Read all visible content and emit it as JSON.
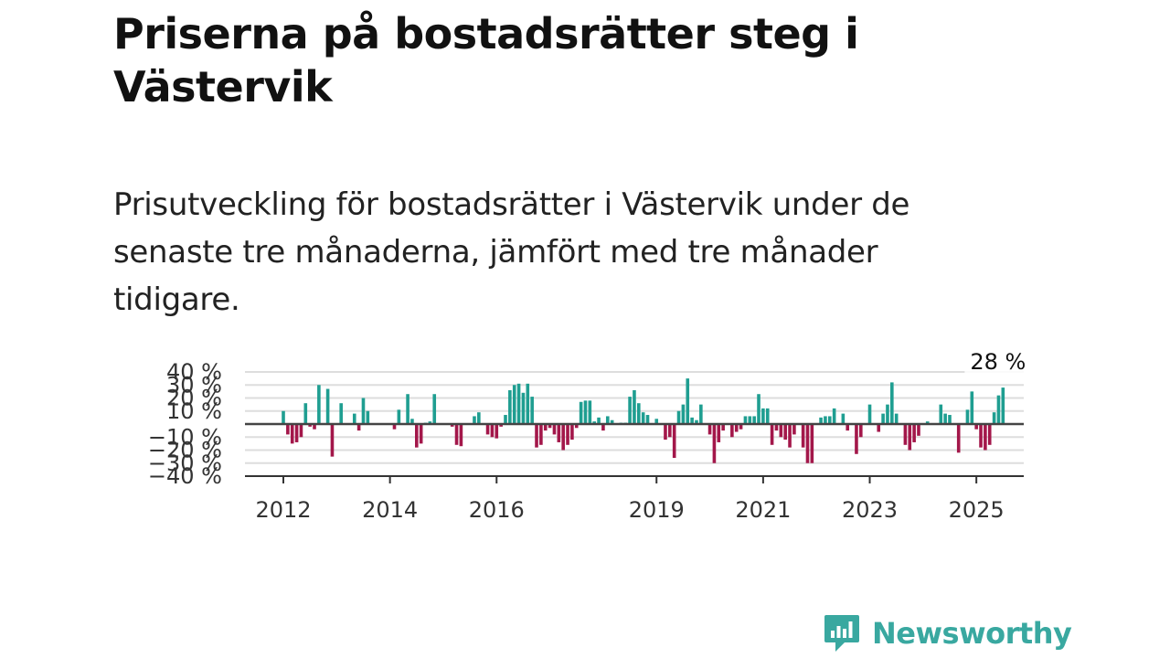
{
  "title": "Priserna på bostadsrätter steg i Västervik",
  "subtitle": "Prisutveckling för bostadsrätter i Västervik under de senaste tre månaderna, jämfört med tre månader tidigare.",
  "brand": {
    "name": "Newsworthy",
    "color": "#39a8a0"
  },
  "colors": {
    "positive": "#1f9e91",
    "negative": "#a3174a",
    "zero_line": "#444444",
    "grid": "#dddddd"
  },
  "chart_data": {
    "type": "bar",
    "ylim": [
      -40,
      40
    ],
    "y_ticks": [
      40,
      30,
      20,
      10,
      0,
      -10,
      -20,
      -30,
      -40
    ],
    "y_tick_labels": [
      "40 %",
      "30 %",
      "20 %",
      "10 %",
      "",
      "−10 %",
      "−20 %",
      "−30 %",
      "−40 %"
    ],
    "x_ticks": [
      "2012",
      "2014",
      "2016",
      "2019",
      "2021",
      "2023",
      "2025"
    ],
    "x_start": "2012-01",
    "grid": true,
    "annotation": "28 %",
    "values": [
      10,
      -8,
      -15,
      -14,
      -10,
      16,
      -2,
      -4,
      30,
      0,
      27,
      -25,
      0,
      16,
      0,
      0,
      8,
      -5,
      20,
      10,
      0,
      0,
      0,
      0,
      0,
      -4,
      11,
      0,
      23,
      4,
      -18,
      -15,
      1,
      2,
      23,
      0,
      0,
      0,
      -2,
      -16,
      -17,
      0,
      0,
      6,
      9,
      0,
      -8,
      -10,
      -11,
      -2,
      7,
      26,
      30,
      31,
      24,
      31,
      21,
      -18,
      -16,
      -5,
      -3,
      -8,
      -14,
      -20,
      -16,
      -12,
      -3,
      17,
      18,
      18,
      2,
      5,
      -5,
      6,
      3,
      0,
      1,
      1,
      21,
      26,
      16,
      9,
      7,
      0,
      4,
      0,
      -12,
      -10,
      -26,
      10,
      15,
      35,
      5,
      3,
      15,
      0,
      -8,
      -30,
      -14,
      -5,
      0,
      -10,
      -6,
      -4,
      6,
      6,
      6,
      23,
      12,
      12,
      -16,
      -5,
      -10,
      -12,
      -18,
      -8,
      0,
      -18,
      -30,
      -30,
      0,
      5,
      6,
      6,
      12,
      0,
      8,
      -5,
      0,
      -23,
      -10,
      0,
      15,
      0,
      -6,
      8,
      15,
      32,
      8,
      0,
      -16,
      -20,
      -14,
      -9,
      0,
      2,
      0,
      0,
      15,
      8,
      7,
      0,
      -22,
      0,
      11,
      25,
      -4,
      -18,
      -20,
      -16,
      9,
      22,
      28
    ]
  }
}
